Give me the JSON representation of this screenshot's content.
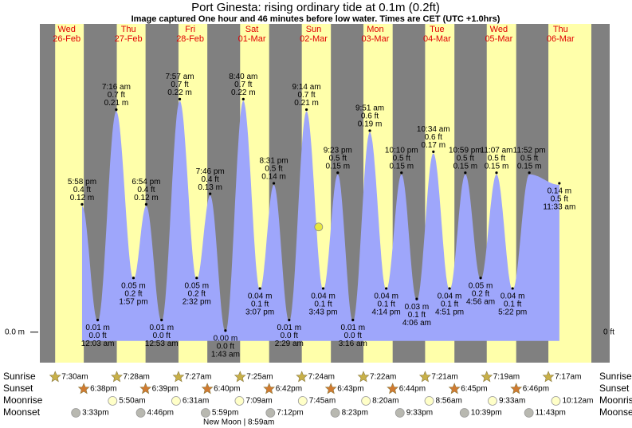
{
  "chart_data": {
    "type": "tide",
    "title": "Port Ginesta: rising  ordinary tide at 0.1m (0.2ft)",
    "subtitle": "Image captured One hour and 46 minutes before low water. Times are CET (UTC +1.0hrs)",
    "weekdays": [
      "Wed",
      "Thu",
      "Fri",
      "Sat",
      "Sun",
      "Mon",
      "Tue",
      "Wed",
      "Thu"
    ],
    "dates": [
      "26-Feb",
      "27-Feb",
      "28-Feb",
      "01-Mar",
      "02-Mar",
      "03-Mar",
      "04-Mar",
      "05-Mar",
      "06-Mar"
    ],
    "ylim": [
      -0.029,
      0.293
    ],
    "yticks": [
      {
        "value": 0,
        "label": "0.0 m"
      }
    ],
    "y2lim": [
      -0.095,
      0.961
    ],
    "y2ticks": [
      {
        "value": 0,
        "label": "0 ft"
      }
    ],
    "color": "#9ea6fb",
    "tides": [
      {
        "date": "26-Feb",
        "time": "5:58 pm",
        "value": 0.12,
        "value_label": "0.12 m",
        "ft": "0.4 ft"
      },
      {
        "date": "27-Feb",
        "time": "12:03 am",
        "value": 0.01,
        "value_label": "0.01 m",
        "ft": "0.0 ft"
      },
      {
        "date": "27-Feb",
        "time": "7:16 am",
        "value": 0.21,
        "value_label": "0.21 m",
        "ft": "0.7 ft"
      },
      {
        "date": "27-Feb",
        "time": "1:57 pm",
        "value": 0.05,
        "value_label": "0.05 m",
        "ft": "0.2 ft"
      },
      {
        "date": "27-Feb",
        "time": "6:54 pm",
        "value": 0.12,
        "value_label": "0.12 m",
        "ft": "0.4 ft"
      },
      {
        "date": "28-Feb",
        "time": "12:53 am",
        "value": 0.01,
        "value_label": "0.01 m",
        "ft": "0.0 ft"
      },
      {
        "date": "28-Feb",
        "time": "7:57 am",
        "value": 0.22,
        "value_label": "0.22 m",
        "ft": "0.7 ft"
      },
      {
        "date": "28-Feb",
        "time": "2:32 pm",
        "value": 0.05,
        "value_label": "0.05 m",
        "ft": "0.2 ft"
      },
      {
        "date": "28-Feb",
        "time": "7:46 pm",
        "value": 0.13,
        "value_label": "0.13 m",
        "ft": "0.4 ft"
      },
      {
        "date": "01-Mar",
        "time": "1:43 am",
        "value": 0,
        "value_label": "0.00 m",
        "ft": "0.0 ft"
      },
      {
        "date": "01-Mar",
        "time": "8:40 am",
        "value": 0.22,
        "value_label": "0.22 m",
        "ft": "0.7 ft"
      },
      {
        "date": "01-Mar",
        "time": "3:07 pm",
        "value": 0.04,
        "value_label": "0.04 m",
        "ft": "0.1 ft"
      },
      {
        "date": "01-Mar",
        "time": "8:31 pm",
        "value": 0.14,
        "value_label": "0.14 m",
        "ft": "0.5 ft"
      },
      {
        "date": "02-Mar",
        "time": "2:29 am",
        "value": 0.01,
        "value_label": "0.01 m",
        "ft": "0.0 ft"
      },
      {
        "date": "02-Mar",
        "time": "9:14 am",
        "value": 0.21,
        "value_label": "0.21 m",
        "ft": "0.7 ft"
      },
      {
        "date": "02-Mar",
        "time": "3:43 pm",
        "value": 0.04,
        "value_label": "0.04 m",
        "ft": "0.1 ft"
      },
      {
        "date": "02-Mar",
        "time": "9:23 pm",
        "value": 0.15,
        "value_label": "0.15 m",
        "ft": "0.5 ft"
      },
      {
        "date": "03-Mar",
        "time": "3:16 am",
        "value": 0.01,
        "value_label": "0.01 m",
        "ft": "0.0 ft"
      },
      {
        "date": "03-Mar",
        "time": "9:51 am",
        "value": 0.19,
        "value_label": "0.19 m",
        "ft": "0.6 ft"
      },
      {
        "date": "03-Mar",
        "time": "4:14 pm",
        "value": 0.04,
        "value_label": "0.04 m",
        "ft": "0.1 ft"
      },
      {
        "date": "03-Mar",
        "time": "10:10 pm",
        "value": 0.15,
        "value_label": "0.15 m",
        "ft": "0.5 ft"
      },
      {
        "date": "04-Mar",
        "time": "4:06 am",
        "value": 0.03,
        "value_label": "0.03 m",
        "ft": "0.1 ft"
      },
      {
        "date": "04-Mar",
        "time": "10:34 am",
        "value": 0.17,
        "value_label": "0.17 m",
        "ft": "0.6 ft"
      },
      {
        "date": "04-Mar",
        "time": "4:51 pm",
        "value": 0.04,
        "value_label": "0.04 m",
        "ft": "0.1 ft"
      },
      {
        "date": "04-Mar",
        "time": "10:59 pm",
        "value": 0.15,
        "value_label": "0.15 m",
        "ft": "0.5 ft"
      },
      {
        "date": "05-Mar",
        "time": "4:56 am",
        "value": 0.05,
        "value_label": "0.05 m",
        "ft": "0.2 ft"
      },
      {
        "date": "05-Mar",
        "time": "11:07 am",
        "value": 0.15,
        "value_label": "0.15 m",
        "ft": "0.5 ft"
      },
      {
        "date": "05-Mar",
        "time": "5:22 pm",
        "value": 0.04,
        "value_label": "0.04 m",
        "ft": "0.1 ft"
      },
      {
        "date": "05-Mar",
        "time": "11:52 pm",
        "value": 0.15,
        "value_label": "0.15 m",
        "ft": "0.5 ft"
      },
      {
        "date": "06-Mar",
        "time": "11:33 am",
        "value": 0.14,
        "value_label": "0.14 m",
        "ft": "0.5 ft"
      }
    ],
    "marker": {
      "date": "02-Mar",
      "time": "1:57 pm",
      "value": 0.1,
      "color": "#e8e840"
    },
    "events": [
      {
        "name": "Sunrise",
        "icon": "star",
        "color": "#c8b048",
        "items": [
          {
            "date": "26-Feb",
            "time": "7:30am"
          },
          {
            "date": "27-Feb",
            "time": "7:28am"
          },
          {
            "date": "28-Feb",
            "time": "7:27am"
          },
          {
            "date": "01-Mar",
            "time": "7:25am"
          },
          {
            "date": "02-Mar",
            "time": "7:24am"
          },
          {
            "date": "03-Mar",
            "time": "7:22am"
          },
          {
            "date": "04-Mar",
            "time": "7:21am"
          },
          {
            "date": "05-Mar",
            "time": "7:19am"
          },
          {
            "date": "06-Mar",
            "time": "7:17am"
          }
        ]
      },
      {
        "name": "Sunset",
        "icon": "star",
        "color": "#d07a30",
        "items": [
          {
            "date": "26-Feb",
            "time": "6:38pm"
          },
          {
            "date": "27-Feb",
            "time": "6:39pm"
          },
          {
            "date": "28-Feb",
            "time": "6:40pm"
          },
          {
            "date": "01-Mar",
            "time": "6:42pm"
          },
          {
            "date": "02-Mar",
            "time": "6:43pm"
          },
          {
            "date": "03-Mar",
            "time": "6:44pm"
          },
          {
            "date": "04-Mar",
            "time": "6:45pm"
          },
          {
            "date": "05-Mar",
            "time": "6:46pm"
          }
        ]
      },
      {
        "name": "Moonrise",
        "icon": "circle",
        "color": "#ffffc8",
        "items": [
          {
            "date": "27-Feb",
            "time": "5:50am"
          },
          {
            "date": "28-Feb",
            "time": "6:31am"
          },
          {
            "date": "01-Mar",
            "time": "7:09am"
          },
          {
            "date": "02-Mar",
            "time": "7:45am"
          },
          {
            "date": "03-Mar",
            "time": "8:20am"
          },
          {
            "date": "04-Mar",
            "time": "8:56am"
          },
          {
            "date": "05-Mar",
            "time": "9:33am"
          },
          {
            "date": "06-Mar",
            "time": "10:12am"
          }
        ]
      },
      {
        "name": "Moonset",
        "icon": "circle",
        "color": "#b8b8b0",
        "items": [
          {
            "date": "26-Feb",
            "time": "3:33pm"
          },
          {
            "date": "27-Feb",
            "time": "4:46pm"
          },
          {
            "date": "28-Feb",
            "time": "5:59pm"
          },
          {
            "date": "01-Mar",
            "time": "7:12pm"
          },
          {
            "date": "02-Mar",
            "time": "8:23pm"
          },
          {
            "date": "03-Mar",
            "time": "9:33pm"
          },
          {
            "date": "04-Mar",
            "time": "10:39pm"
          },
          {
            "date": "05-Mar",
            "time": "11:43pm"
          }
        ]
      }
    ],
    "moon_phase": "New Moon | 8:59am"
  }
}
